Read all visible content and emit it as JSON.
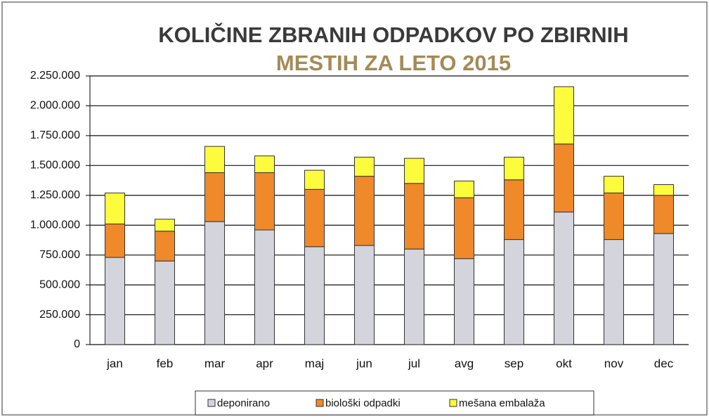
{
  "chart_data": {
    "type": "stacked_bar",
    "title": "KOLIČINE ZBRANIH ODPADKOV PO ZBIRNIH",
    "subtitle": "MESTIH ZA LETO 2015",
    "categories": [
      "jan",
      "feb",
      "mar",
      "apr",
      "maj",
      "jun",
      "jul",
      "avg",
      "sep",
      "okt",
      "nov",
      "dec"
    ],
    "series": [
      {
        "name": "deponirano",
        "color": "#d4d4dc",
        "values": [
          730000,
          700000,
          1030000,
          960000,
          820000,
          830000,
          800000,
          720000,
          880000,
          1110000,
          880000,
          930000
        ]
      },
      {
        "name": "biološki odpadki",
        "color": "#f0892a",
        "values": [
          280000,
          250000,
          410000,
          480000,
          480000,
          580000,
          550000,
          510000,
          500000,
          570000,
          390000,
          320000
        ]
      },
      {
        "name": "mešana embalaža",
        "color": "#fcfc3c",
        "values": [
          260000,
          100000,
          220000,
          140000,
          160000,
          160000,
          210000,
          140000,
          190000,
          480000,
          140000,
          90000
        ]
      }
    ],
    "ylim": [
      0,
      2250000
    ],
    "yticks": [
      0,
      {
        "value": 250000,
        "label": "250.000"
      },
      {
        "value": 500000,
        "label": "500.000"
      },
      {
        "value": 750000,
        "label": "750.000"
      },
      {
        "value": 1000000,
        "label": "1.000.000"
      },
      {
        "value": 1250000,
        "label": "1.250.000"
      },
      {
        "value": 1500000,
        "label": "1.500.000"
      },
      {
        "value": 1750000,
        "label": "1.750.000"
      },
      {
        "value": 2000000,
        "label": "2.000.000"
      },
      {
        "value": 2250000,
        "label": "2.250.000"
      }
    ],
    "grid": true,
    "legend": "bottom"
  }
}
